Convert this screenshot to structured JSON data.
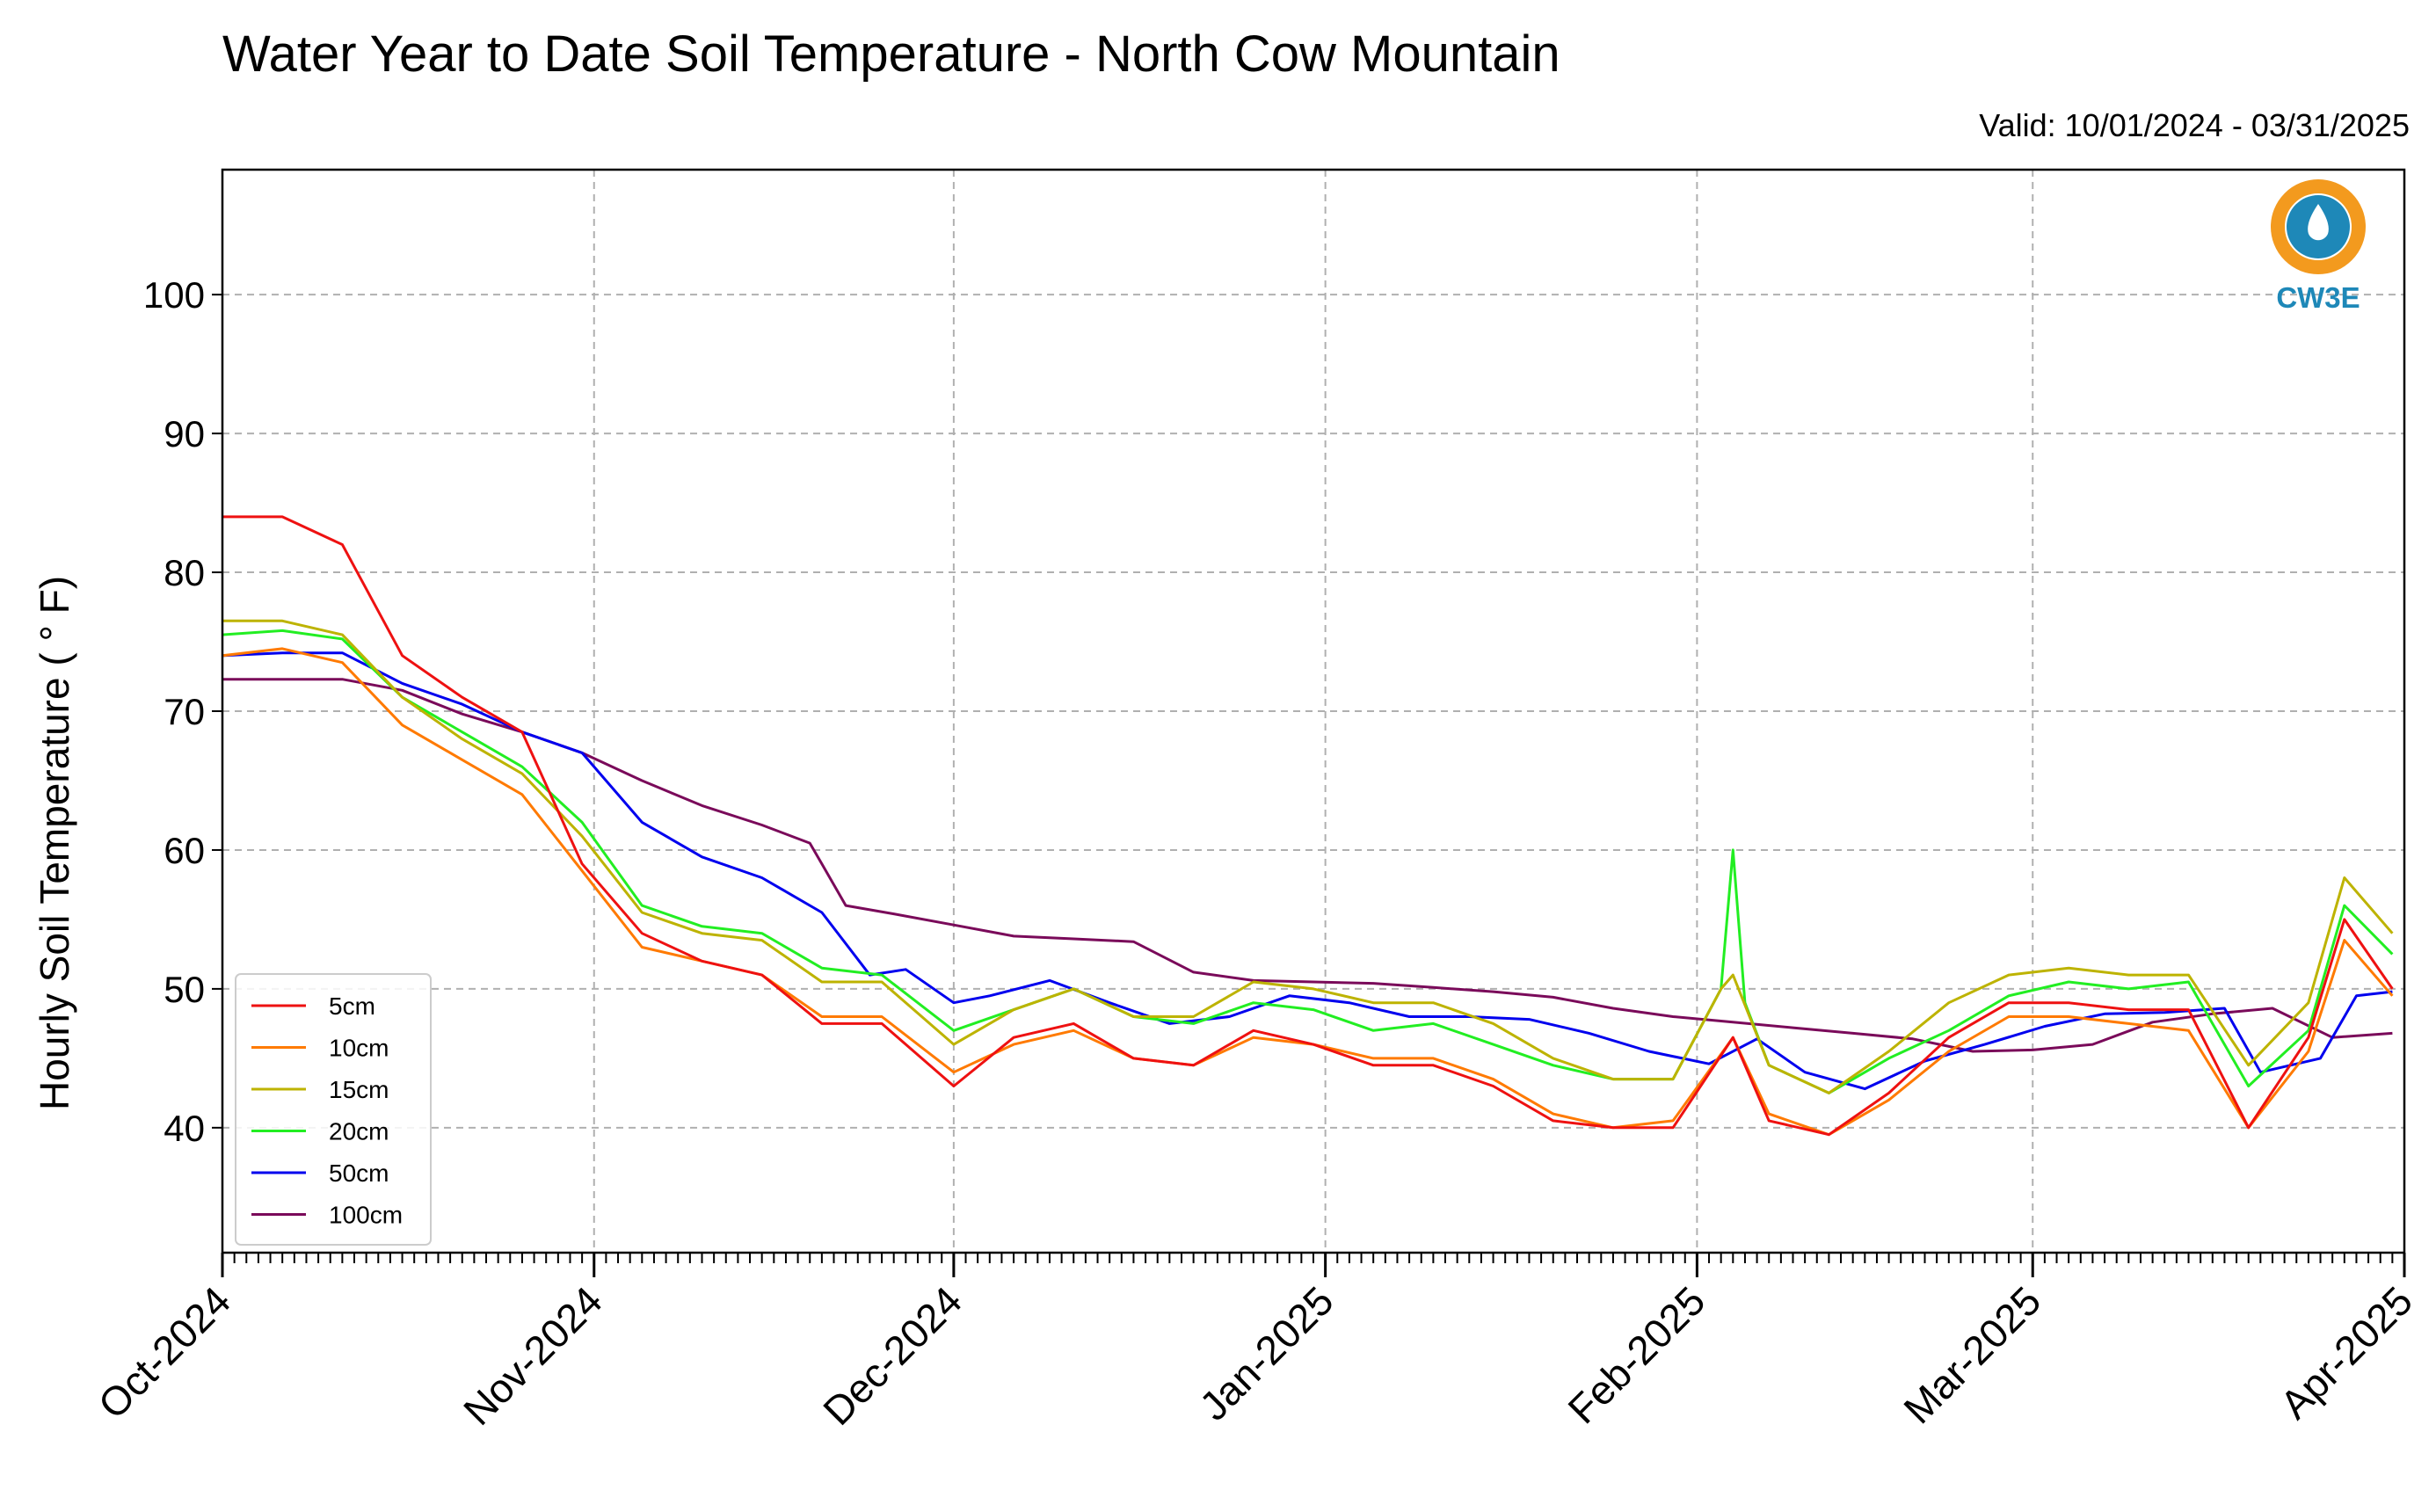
{
  "title": "Water Year to Date Soil Temperature - North Cow Mountain",
  "valid_label": "Valid: 10/01/2024 - 03/31/2025",
  "logo_text": "CW3E",
  "colors": {
    "5cm": "#ee1111",
    "10cm": "#ff7a00",
    "15cm": "#bdb300",
    "20cm": "#22ee22",
    "50cm": "#0000ee",
    "100cm": "#7a0a5a",
    "logo_orange": "#f39a1e",
    "logo_blue": "#1e88b8"
  },
  "chart_data": {
    "type": "line",
    "title": "Water Year to Date Soil Temperature - North Cow Mountain",
    "ylabel": "Hourly Soil Temperature ( ° F)",
    "xlabel": "",
    "xlim": [
      "2024-10-01",
      "2025-04-01"
    ],
    "ylim": [
      31,
      109
    ],
    "yticks": [
      40,
      50,
      60,
      70,
      80,
      90,
      100
    ],
    "xtick_labels": [
      "Oct-2024",
      "Nov-2024",
      "Dec-2024",
      "Jan-2025",
      "Feb-2025",
      "Mar-2025",
      "Apr-2025"
    ],
    "xtick_dates": [
      "2024-10-01",
      "2024-11-01",
      "2024-12-01",
      "2025-01-01",
      "2025-02-01",
      "2025-03-01",
      "2025-04-01"
    ],
    "grid": true,
    "legend_position": "lower-left",
    "series": [
      {
        "name": "100cm",
        "x": [
          "2024-10-01",
          "2024-10-06",
          "2024-10-11",
          "2024-10-16",
          "2024-10-21",
          "2024-10-26",
          "2024-10-31",
          "2024-11-05",
          "2024-11-10",
          "2024-11-15",
          "2024-11-19",
          "2024-11-20",
          "2024-11-22",
          "2024-11-26",
          "2024-12-01",
          "2024-12-06",
          "2024-12-11",
          "2024-12-16",
          "2024-12-21",
          "2024-12-26",
          "2024-12-31",
          "2025-01-05",
          "2025-01-10",
          "2025-01-15",
          "2025-01-20",
          "2025-01-25",
          "2025-01-30",
          "2025-02-04",
          "2025-02-09",
          "2025-02-14",
          "2025-02-19",
          "2025-02-24",
          "2025-03-01",
          "2025-03-06",
          "2025-03-11",
          "2025-03-16",
          "2025-03-21",
          "2025-03-26",
          "2025-03-31"
        ],
        "y": [
          72.3,
          72.3,
          72.3,
          71.5,
          69.8,
          68.5,
          67.0,
          65.0,
          63.2,
          61.8,
          60.5,
          59.0,
          56.0,
          55.4,
          54.6,
          53.8,
          53.6,
          53.4,
          51.2,
          50.6,
          50.5,
          50.4,
          50.1,
          49.8,
          49.4,
          48.6,
          48.0,
          47.6,
          47.2,
          46.8,
          46.4,
          45.5,
          45.6,
          46.0,
          47.6,
          48.2,
          48.6,
          46.5,
          46.8
        ]
      },
      {
        "name": "50cm",
        "x": [
          "2024-10-01",
          "2024-10-06",
          "2024-10-11",
          "2024-10-16",
          "2024-10-21",
          "2024-10-26",
          "2024-10-31",
          "2024-11-05",
          "2024-11-10",
          "2024-11-15",
          "2024-11-20",
          "2024-11-24",
          "2024-11-27",
          "2024-12-01",
          "2024-12-04",
          "2024-12-09",
          "2024-12-14",
          "2024-12-19",
          "2024-12-24",
          "2024-12-29",
          "2025-01-03",
          "2025-01-08",
          "2025-01-13",
          "2025-01-18",
          "2025-01-23",
          "2025-01-28",
          "2025-02-02",
          "2025-02-06",
          "2025-02-10",
          "2025-02-15",
          "2025-02-20",
          "2025-02-25",
          "2025-03-02",
          "2025-03-07",
          "2025-03-12",
          "2025-03-17",
          "2025-03-20",
          "2025-03-25",
          "2025-03-28",
          "2025-03-31"
        ],
        "y": [
          74.0,
          74.2,
          74.2,
          72.0,
          70.5,
          68.5,
          67.0,
          62.0,
          59.5,
          58.0,
          55.5,
          51.0,
          51.4,
          49.0,
          49.5,
          50.6,
          49.0,
          47.5,
          48.0,
          49.5,
          49.0,
          48.0,
          48.0,
          47.8,
          46.8,
          45.5,
          44.6,
          46.4,
          44.0,
          42.8,
          44.8,
          46.0,
          47.3,
          48.2,
          48.3,
          48.6,
          44.0,
          45.0,
          49.5,
          49.8
        ]
      },
      {
        "name": "20cm",
        "x": [
          "2024-10-01",
          "2024-10-06",
          "2024-10-11",
          "2024-10-16",
          "2024-10-21",
          "2024-10-26",
          "2024-10-31",
          "2024-11-05",
          "2024-11-10",
          "2024-11-15",
          "2024-11-20",
          "2024-11-25",
          "2024-12-01",
          "2024-12-06",
          "2024-12-11",
          "2024-12-16",
          "2024-12-21",
          "2024-12-26",
          "2024-12-31",
          "2025-01-05",
          "2025-01-10",
          "2025-01-15",
          "2025-01-20",
          "2025-01-25",
          "2025-01-30",
          "2025-02-03",
          "2025-02-04",
          "2025-02-05",
          "2025-02-07",
          "2025-02-12",
          "2025-02-17",
          "2025-02-22",
          "2025-02-27",
          "2025-03-04",
          "2025-03-09",
          "2025-03-14",
          "2025-03-19",
          "2025-03-24",
          "2025-03-27",
          "2025-03-31"
        ],
        "y": [
          75.5,
          75.8,
          75.2,
          71.0,
          68.5,
          66.0,
          62.0,
          56.0,
          54.5,
          54.0,
          51.5,
          51.0,
          47.0,
          48.5,
          50.0,
          48.0,
          47.5,
          49.0,
          48.5,
          47.0,
          47.5,
          46.0,
          44.5,
          43.5,
          43.5,
          50.0,
          60.0,
          49.0,
          44.5,
          42.5,
          45.0,
          47.0,
          49.5,
          50.5,
          50.0,
          50.5,
          43.0,
          47.0,
          56.0,
          52.5
        ]
      },
      {
        "name": "15cm",
        "x": [
          "2024-10-01",
          "2024-10-06",
          "2024-10-11",
          "2024-10-16",
          "2024-10-21",
          "2024-10-26",
          "2024-10-31",
          "2024-11-05",
          "2024-11-10",
          "2024-11-15",
          "2024-11-20",
          "2024-11-25",
          "2024-12-01",
          "2024-12-06",
          "2024-12-11",
          "2024-12-16",
          "2024-12-21",
          "2024-12-26",
          "2024-12-31",
          "2025-01-05",
          "2025-01-10",
          "2025-01-15",
          "2025-01-20",
          "2025-01-25",
          "2025-01-30",
          "2025-02-03",
          "2025-02-04",
          "2025-02-07",
          "2025-02-12",
          "2025-02-17",
          "2025-02-22",
          "2025-02-27",
          "2025-03-04",
          "2025-03-09",
          "2025-03-14",
          "2025-03-19",
          "2025-03-24",
          "2025-03-27",
          "2025-03-31"
        ],
        "y": [
          76.5,
          76.5,
          75.5,
          71.0,
          68.0,
          65.5,
          61.0,
          55.5,
          54.0,
          53.5,
          50.5,
          50.5,
          46.0,
          48.5,
          50.0,
          48.0,
          48.0,
          50.5,
          50.0,
          49.0,
          49.0,
          47.5,
          45.0,
          43.5,
          43.5,
          50.0,
          51.0,
          44.5,
          42.5,
          45.5,
          49.0,
          51.0,
          51.5,
          51.0,
          51.0,
          44.5,
          49.0,
          58.0,
          54.0
        ]
      },
      {
        "name": "10cm",
        "x": [
          "2024-10-01",
          "2024-10-06",
          "2024-10-11",
          "2024-10-16",
          "2024-10-21",
          "2024-10-26",
          "2024-10-31",
          "2024-11-05",
          "2024-11-10",
          "2024-11-15",
          "2024-11-20",
          "2024-11-25",
          "2024-12-01",
          "2024-12-06",
          "2024-12-11",
          "2024-12-16",
          "2024-12-21",
          "2024-12-26",
          "2024-12-31",
          "2025-01-05",
          "2025-01-10",
          "2025-01-15",
          "2025-01-20",
          "2025-01-25",
          "2025-01-30",
          "2025-02-04",
          "2025-02-07",
          "2025-02-12",
          "2025-02-17",
          "2025-02-22",
          "2025-02-27",
          "2025-03-04",
          "2025-03-09",
          "2025-03-14",
          "2025-03-19",
          "2025-03-24",
          "2025-03-27",
          "2025-03-31"
        ],
        "y": [
          74.0,
          74.5,
          73.5,
          69.0,
          66.5,
          64.0,
          58.5,
          53.0,
          52.0,
          51.0,
          48.0,
          48.0,
          44.0,
          46.0,
          47.0,
          45.0,
          44.5,
          46.5,
          46.0,
          45.0,
          45.0,
          43.5,
          41.0,
          40.0,
          40.5,
          46.5,
          41.0,
          39.5,
          42.0,
          45.5,
          48.0,
          48.0,
          47.5,
          47.0,
          40.0,
          45.5,
          53.5,
          49.5
        ]
      },
      {
        "name": "5cm",
        "x": [
          "2024-10-01",
          "2024-10-06",
          "2024-10-11",
          "2024-10-16",
          "2024-10-21",
          "2024-10-26",
          "2024-10-31",
          "2024-11-05",
          "2024-11-10",
          "2024-11-15",
          "2024-11-20",
          "2024-11-25",
          "2024-12-01",
          "2024-12-06",
          "2024-12-11",
          "2024-12-16",
          "2024-12-21",
          "2024-12-26",
          "2024-12-31",
          "2025-01-05",
          "2025-01-10",
          "2025-01-15",
          "2025-01-20",
          "2025-01-25",
          "2025-01-30",
          "2025-02-04",
          "2025-02-07",
          "2025-02-12",
          "2025-02-17",
          "2025-02-22",
          "2025-02-27",
          "2025-03-04",
          "2025-03-09",
          "2025-03-14",
          "2025-03-19",
          "2025-03-24",
          "2025-03-27",
          "2025-03-31"
        ],
        "y": [
          84.0,
          84.0,
          82.0,
          74.0,
          71.0,
          68.5,
          59.0,
          54.0,
          52.0,
          51.0,
          47.5,
          47.5,
          43.0,
          46.5,
          47.5,
          45.0,
          44.5,
          47.0,
          46.0,
          44.5,
          44.5,
          43.0,
          40.5,
          40.0,
          40.0,
          46.5,
          40.5,
          39.5,
          42.5,
          46.5,
          49.0,
          49.0,
          48.5,
          48.5,
          40.0,
          46.5,
          55.0,
          50.0
        ]
      }
    ],
    "legend_entries": [
      "5cm",
      "10cm",
      "15cm",
      "20cm",
      "50cm",
      "100cm"
    ]
  }
}
